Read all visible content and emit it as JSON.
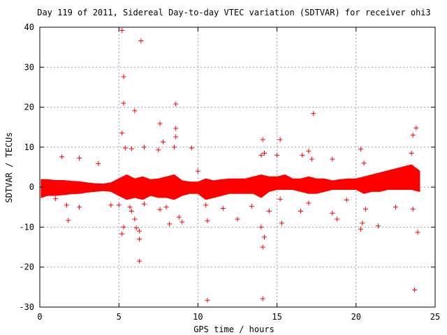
{
  "chart_data": {
    "type": "scatter",
    "title": "Day 119 of 2011, Sidereal Day-to-day VTEC variation (SDTVAR) for receiver ohi3",
    "xlabel": "GPS time / hours",
    "ylabel": "SDTVAR / TECUs",
    "xlim": [
      0,
      25
    ],
    "ylim": [
      -30,
      40
    ],
    "xticks": [
      0,
      5,
      10,
      15,
      20,
      25
    ],
    "yticks": [
      -30,
      -20,
      -10,
      0,
      10,
      20,
      30,
      40
    ],
    "grid": true,
    "legend": "none",
    "marker": "plus",
    "series": [
      {
        "color": "#ff0000",
        "band": [
          [
            0.1,
            -2.5,
            1.8
          ],
          [
            0.5,
            -2.0,
            1.8
          ],
          [
            1.0,
            -2.0,
            1.6
          ],
          [
            1.5,
            -1.8,
            1.6
          ],
          [
            2.0,
            -1.6,
            1.4
          ],
          [
            2.5,
            -1.5,
            1.3
          ],
          [
            3.0,
            -1.2,
            1.0
          ],
          [
            3.5,
            -1.0,
            0.8
          ],
          [
            4.0,
            -0.8,
            0.7
          ],
          [
            4.5,
            -1.0,
            1.0
          ],
          [
            5.0,
            -2.0,
            2.0
          ],
          [
            5.5,
            -3.0,
            3.0
          ],
          [
            6.0,
            -2.5,
            2.0
          ],
          [
            6.5,
            -3.0,
            2.5
          ],
          [
            7.0,
            -2.0,
            1.8
          ],
          [
            7.5,
            -2.5,
            2.0
          ],
          [
            8.0,
            -2.5,
            2.5
          ],
          [
            8.5,
            -3.0,
            3.0
          ],
          [
            9.0,
            -2.0,
            1.5
          ],
          [
            9.5,
            -1.5,
            1.2
          ],
          [
            10.0,
            -1.5,
            1.2
          ],
          [
            10.5,
            -3.0,
            2.0
          ],
          [
            11.0,
            -2.5,
            1.5
          ],
          [
            11.5,
            -2.0,
            1.8
          ],
          [
            12.0,
            -1.5,
            2.0
          ],
          [
            12.5,
            -1.5,
            2.0
          ],
          [
            13.0,
            -1.5,
            2.0
          ],
          [
            13.5,
            -1.5,
            2.5
          ],
          [
            14.0,
            -2.5,
            3.0
          ],
          [
            14.5,
            -1.0,
            2.5
          ],
          [
            15.0,
            -0.5,
            2.5
          ],
          [
            15.5,
            -0.5,
            3.0
          ],
          [
            16.0,
            -0.5,
            2.0
          ],
          [
            16.5,
            -1.0,
            2.0
          ],
          [
            17.0,
            -1.5,
            2.5
          ],
          [
            17.5,
            -1.5,
            2.0
          ],
          [
            18.0,
            -1.0,
            2.0
          ],
          [
            18.5,
            -0.5,
            1.5
          ],
          [
            19.0,
            -0.5,
            1.8
          ],
          [
            19.5,
            -0.5,
            2.0
          ],
          [
            20.0,
            -0.5,
            2.0
          ],
          [
            20.5,
            -1.5,
            2.5
          ],
          [
            21.0,
            -1.0,
            3.0
          ],
          [
            21.5,
            -1.0,
            3.5
          ],
          [
            22.0,
            -0.5,
            4.0
          ],
          [
            22.5,
            -0.5,
            4.5
          ],
          [
            23.0,
            -0.5,
            5.0
          ],
          [
            23.5,
            -0.5,
            5.5
          ],
          [
            24.0,
            -1.0,
            4.0
          ]
        ],
        "points": [
          [
            5.2,
            39.2
          ],
          [
            6.4,
            36.6
          ],
          [
            5.3,
            27.6
          ],
          [
            5.3,
            21.0
          ],
          [
            6.0,
            19.1
          ],
          [
            8.6,
            20.8
          ],
          [
            17.3,
            18.4
          ],
          [
            7.6,
            15.9
          ],
          [
            8.6,
            14.7
          ],
          [
            5.2,
            13.5
          ],
          [
            8.6,
            12.6
          ],
          [
            14.1,
            11.9
          ],
          [
            15.2,
            11.9
          ],
          [
            7.8,
            11.3
          ],
          [
            23.8,
            14.8
          ],
          [
            23.6,
            13.0
          ],
          [
            5.4,
            9.8
          ],
          [
            5.8,
            9.6
          ],
          [
            6.6,
            10.0
          ],
          [
            9.6,
            9.8
          ],
          [
            8.5,
            10.0
          ],
          [
            7.5,
            9.3
          ],
          [
            17.0,
            9.0
          ],
          [
            20.3,
            9.5
          ],
          [
            23.5,
            8.5
          ],
          [
            1.4,
            7.6
          ],
          [
            2.5,
            7.3
          ],
          [
            3.7,
            5.9
          ],
          [
            10.0,
            4.0
          ],
          [
            14.0,
            8.0
          ],
          [
            14.2,
            8.5
          ],
          [
            15.0,
            8.0
          ],
          [
            16.6,
            8.0
          ],
          [
            17.2,
            7.0
          ],
          [
            18.5,
            7.0
          ],
          [
            20.5,
            6.0
          ],
          [
            10.5,
            -4.5
          ],
          [
            10.6,
            -8.4
          ],
          [
            12.5,
            -8.0
          ],
          [
            14.1,
            -15.0
          ],
          [
            14.2,
            -12.5
          ],
          [
            14.0,
            -10.0
          ],
          [
            14.5,
            -6.0
          ],
          [
            15.3,
            -9.0
          ],
          [
            16.5,
            -6.0
          ],
          [
            17.0,
            -4.0
          ],
          [
            18.5,
            -6.5
          ],
          [
            18.8,
            -8.0
          ],
          [
            20.3,
            -10.5
          ],
          [
            20.4,
            -9.0
          ],
          [
            20.6,
            -5.5
          ],
          [
            21.4,
            -9.7
          ],
          [
            22.5,
            -5.0
          ],
          [
            23.6,
            -5.5
          ],
          [
            23.9,
            -11.3
          ],
          [
            23.7,
            -25.7
          ],
          [
            14.1,
            -27.9
          ],
          [
            10.6,
            -28.3
          ],
          [
            6.3,
            -18.5
          ],
          [
            6.3,
            -13.0
          ],
          [
            6.3,
            -11.0
          ],
          [
            5.3,
            -10.0
          ],
          [
            5.2,
            -11.7
          ],
          [
            6.1,
            -10.2
          ],
          [
            6.0,
            -8.0
          ],
          [
            5.8,
            -6.0
          ],
          [
            5.7,
            -5.0
          ],
          [
            4.5,
            -4.5
          ],
          [
            5.0,
            -4.5
          ],
          [
            6.6,
            -4.2
          ],
          [
            7.6,
            -5.6
          ],
          [
            8.0,
            -5.0
          ],
          [
            8.2,
            -9.2
          ],
          [
            8.8,
            -7.5
          ],
          [
            9.0,
            -8.7
          ],
          [
            1.8,
            -8.3
          ],
          [
            1.7,
            -4.5
          ],
          [
            2.5,
            -5.0
          ],
          [
            1.0,
            -2.9
          ],
          [
            11.6,
            -5.3
          ],
          [
            13.4,
            -4.8
          ],
          [
            15.2,
            -3.0
          ],
          [
            19.4,
            -3.2
          ]
        ]
      }
    ]
  }
}
